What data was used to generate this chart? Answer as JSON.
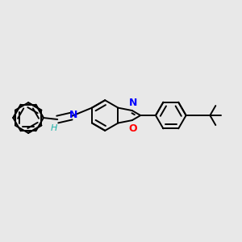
{
  "bg_color": "#e8e8e8",
  "bond_color": "#000000",
  "n_color": "#0000ff",
  "o_color": "#ff0000",
  "h_color": "#20b2aa",
  "bond_width": 1.4,
  "figsize": [
    3.0,
    3.0
  ],
  "dpi": 100,
  "xlim": [
    0,
    3.0
  ],
  "ylim": [
    0,
    3.0
  ]
}
